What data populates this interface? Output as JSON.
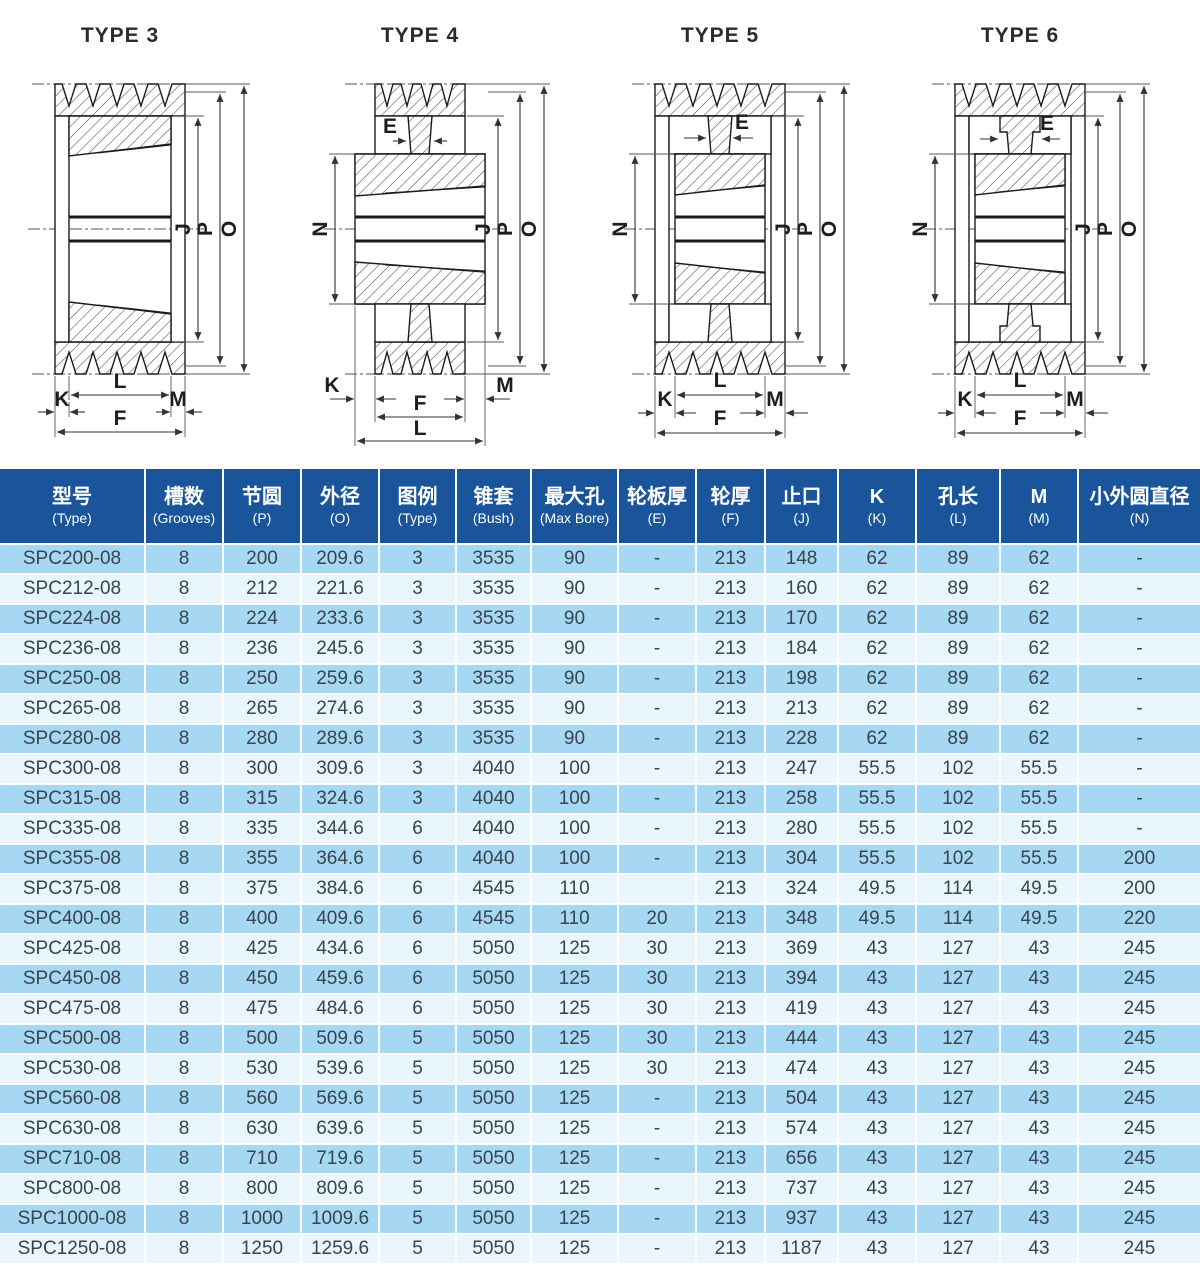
{
  "drawings": {
    "items": [
      {
        "title": "TYPE 3",
        "labels": {
          "J": "J",
          "P": "P",
          "O": "O",
          "L": "L",
          "K": "K",
          "M": "M",
          "F": "F"
        }
      },
      {
        "title": "TYPE 4",
        "labels": {
          "E": "E",
          "N": "N",
          "J": "J",
          "P": "P",
          "O": "O",
          "L": "L",
          "K": "K",
          "M": "M",
          "F": "F"
        }
      },
      {
        "title": "TYPE 5",
        "labels": {
          "E": "E",
          "N": "N",
          "J": "J",
          "P": "P",
          "O": "O",
          "L": "L",
          "K": "K",
          "M": "M",
          "F": "F"
        }
      },
      {
        "title": "TYPE 6",
        "labels": {
          "E": "E",
          "N": "N",
          "J": "J",
          "P": "P",
          "O": "O",
          "L": "L",
          "K": "K",
          "M": "M",
          "F": "F"
        }
      }
    ]
  },
  "table": {
    "header_bg": "#1a559c",
    "row_odd_bg": "#a6d8f3",
    "row_even_bg": "#e9f6fd",
    "text_color": "#39444e",
    "columns": [
      {
        "zh": "型号",
        "en": "(Type)"
      },
      {
        "zh": "槽数",
        "en": "(Grooves)"
      },
      {
        "zh": "节圆",
        "en": "(P)"
      },
      {
        "zh": "外径",
        "en": "(O)"
      },
      {
        "zh": "图例",
        "en": "(Type)"
      },
      {
        "zh": "锥套",
        "en": "(Bush)"
      },
      {
        "zh": "最大孔",
        "en": "(Max Bore)"
      },
      {
        "zh": "轮板厚",
        "en": "(E)"
      },
      {
        "zh": "轮厚",
        "en": "(F)"
      },
      {
        "zh": "止口",
        "en": "(J)"
      },
      {
        "zh": "K",
        "en": "(K)"
      },
      {
        "zh": "孔长",
        "en": "(L)"
      },
      {
        "zh": "M",
        "en": "(M)"
      },
      {
        "zh": "小外圆直径",
        "en": "(N)"
      }
    ],
    "rows": [
      [
        "SPC200-08",
        "8",
        "200",
        "209.6",
        "3",
        "3535",
        "90",
        "-",
        "213",
        "148",
        "62",
        "89",
        "62",
        "-"
      ],
      [
        "SPC212-08",
        "8",
        "212",
        "221.6",
        "3",
        "3535",
        "90",
        "-",
        "213",
        "160",
        "62",
        "89",
        "62",
        "-"
      ],
      [
        "SPC224-08",
        "8",
        "224",
        "233.6",
        "3",
        "3535",
        "90",
        "-",
        "213",
        "170",
        "62",
        "89",
        "62",
        "-"
      ],
      [
        "SPC236-08",
        "8",
        "236",
        "245.6",
        "3",
        "3535",
        "90",
        "-",
        "213",
        "184",
        "62",
        "89",
        "62",
        "-"
      ],
      [
        "SPC250-08",
        "8",
        "250",
        "259.6",
        "3",
        "3535",
        "90",
        "-",
        "213",
        "198",
        "62",
        "89",
        "62",
        "-"
      ],
      [
        "SPC265-08",
        "8",
        "265",
        "274.6",
        "3",
        "3535",
        "90",
        "-",
        "213",
        "213",
        "62",
        "89",
        "62",
        "-"
      ],
      [
        "SPC280-08",
        "8",
        "280",
        "289.6",
        "3",
        "3535",
        "90",
        "-",
        "213",
        "228",
        "62",
        "89",
        "62",
        "-"
      ],
      [
        "SPC300-08",
        "8",
        "300",
        "309.6",
        "3",
        "4040",
        "100",
        "-",
        "213",
        "247",
        "55.5",
        "102",
        "55.5",
        "-"
      ],
      [
        "SPC315-08",
        "8",
        "315",
        "324.6",
        "3",
        "4040",
        "100",
        "-",
        "213",
        "258",
        "55.5",
        "102",
        "55.5",
        "-"
      ],
      [
        "SPC335-08",
        "8",
        "335",
        "344.6",
        "6",
        "4040",
        "100",
        "-",
        "213",
        "280",
        "55.5",
        "102",
        "55.5",
        "-"
      ],
      [
        "SPC355-08",
        "8",
        "355",
        "364.6",
        "6",
        "4040",
        "100",
        "-",
        "213",
        "304",
        "55.5",
        "102",
        "55.5",
        "200"
      ],
      [
        "SPC375-08",
        "8",
        "375",
        "384.6",
        "6",
        "4545",
        "110",
        "",
        "213",
        "324",
        "49.5",
        "114",
        "49.5",
        "200"
      ],
      [
        "SPC400-08",
        "8",
        "400",
        "409.6",
        "6",
        "4545",
        "110",
        "20",
        "213",
        "348",
        "49.5",
        "114",
        "49.5",
        "220"
      ],
      [
        "SPC425-08",
        "8",
        "425",
        "434.6",
        "6",
        "5050",
        "125",
        "30",
        "213",
        "369",
        "43",
        "127",
        "43",
        "245"
      ],
      [
        "SPC450-08",
        "8",
        "450",
        "459.6",
        "6",
        "5050",
        "125",
        "30",
        "213",
        "394",
        "43",
        "127",
        "43",
        "245"
      ],
      [
        "SPC475-08",
        "8",
        "475",
        "484.6",
        "6",
        "5050",
        "125",
        "30",
        "213",
        "419",
        "43",
        "127",
        "43",
        "245"
      ],
      [
        "SPC500-08",
        "8",
        "500",
        "509.6",
        "5",
        "5050",
        "125",
        "30",
        "213",
        "444",
        "43",
        "127",
        "43",
        "245"
      ],
      [
        "SPC530-08",
        "8",
        "530",
        "539.6",
        "5",
        "5050",
        "125",
        "30",
        "213",
        "474",
        "43",
        "127",
        "43",
        "245"
      ],
      [
        "SPC560-08",
        "8",
        "560",
        "569.6",
        "5",
        "5050",
        "125",
        "-",
        "213",
        "504",
        "43",
        "127",
        "43",
        "245"
      ],
      [
        "SPC630-08",
        "8",
        "630",
        "639.6",
        "5",
        "5050",
        "125",
        "-",
        "213",
        "574",
        "43",
        "127",
        "43",
        "245"
      ],
      [
        "SPC710-08",
        "8",
        "710",
        "719.6",
        "5",
        "5050",
        "125",
        "-",
        "213",
        "656",
        "43",
        "127",
        "43",
        "245"
      ],
      [
        "SPC800-08",
        "8",
        "800",
        "809.6",
        "5",
        "5050",
        "125",
        "-",
        "213",
        "737",
        "43",
        "127",
        "43",
        "245"
      ],
      [
        "SPC1000-08",
        "8",
        "1000",
        "1009.6",
        "5",
        "5050",
        "125",
        "-",
        "213",
        "937",
        "43",
        "127",
        "43",
        "245"
      ],
      [
        "SPC1250-08",
        "8",
        "1250",
        "1259.6",
        "5",
        "5050",
        "125",
        "-",
        "213",
        "1187",
        "43",
        "127",
        "43",
        "245"
      ]
    ]
  }
}
